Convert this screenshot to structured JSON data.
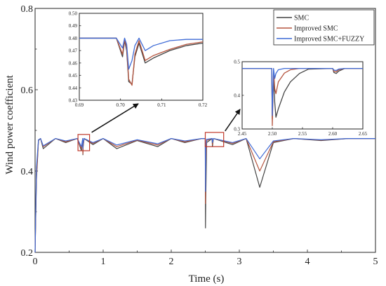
{
  "chart_data": {
    "type": "line",
    "title": "",
    "xlabel": "Time (s)",
    "ylabel": "Wind power coefficient",
    "xlim": [
      0,
      5
    ],
    "ylim": [
      0.2,
      0.8
    ],
    "xticks": [
      0,
      1,
      2,
      3,
      4,
      5
    ],
    "yticks": [
      0.2,
      0.4,
      0.6,
      0.8
    ],
    "xtick_labels": [
      "0",
      "1",
      "2",
      "3",
      "4",
      "5"
    ],
    "ytick_labels": [
      "0.2",
      "0.4",
      "0.6",
      "0.8"
    ],
    "legend_position": "top-right",
    "colors": {
      "SMC": "#444444",
      "Improved SMC": "#b5553f",
      "Improved SMC+FUZZY": "#3f6bd6",
      "highlight_box": "#c0392b",
      "arrow": "#111111"
    },
    "series": [
      {
        "name": "SMC",
        "baseline": 0.48,
        "x": [
          0,
          0.02,
          0.05,
          0.08,
          0.12,
          0.3,
          0.45,
          0.62,
          0.68,
          0.7,
          0.702,
          0.706,
          0.72,
          0.85,
          1.0,
          1.2,
          1.5,
          1.8,
          2.0,
          2.2,
          2.45,
          2.5,
          2.503,
          2.507,
          2.52,
          2.6,
          2.605,
          2.62,
          2.9,
          3.1,
          3.3,
          3.5,
          3.8,
          4.2,
          4.6,
          5.0
        ],
        "values": [
          0.2,
          0.38,
          0.475,
          0.48,
          0.455,
          0.48,
          0.47,
          0.48,
          0.45,
          0.48,
          0.44,
          0.46,
          0.48,
          0.465,
          0.48,
          0.455,
          0.475,
          0.46,
          0.48,
          0.47,
          0.48,
          0.48,
          0.26,
          0.33,
          0.47,
          0.48,
          0.46,
          0.48,
          0.465,
          0.48,
          0.36,
          0.47,
          0.48,
          0.475,
          0.48,
          0.48
        ]
      },
      {
        "name": "Improved SMC",
        "baseline": 0.48,
        "x": [
          0,
          0.02,
          0.05,
          0.08,
          0.12,
          0.3,
          0.45,
          0.62,
          0.68,
          0.7,
          0.702,
          0.706,
          0.72,
          0.85,
          1.0,
          1.2,
          1.5,
          1.8,
          2.0,
          2.2,
          2.45,
          2.5,
          2.503,
          2.507,
          2.52,
          2.6,
          2.605,
          2.62,
          2.9,
          3.1,
          3.3,
          3.5,
          3.8,
          4.2,
          4.6,
          5.0
        ],
        "values": [
          0.2,
          0.39,
          0.476,
          0.48,
          0.46,
          0.48,
          0.472,
          0.48,
          0.455,
          0.48,
          0.442,
          0.462,
          0.48,
          0.468,
          0.48,
          0.46,
          0.476,
          0.464,
          0.48,
          0.472,
          0.48,
          0.48,
          0.32,
          0.42,
          0.475,
          0.48,
          0.465,
          0.48,
          0.468,
          0.48,
          0.4,
          0.472,
          0.48,
          0.476,
          0.48,
          0.48
        ]
      },
      {
        "name": "Improved SMC+FUZZY",
        "baseline": 0.48,
        "x": [
          0,
          0.02,
          0.05,
          0.08,
          0.12,
          0.3,
          0.45,
          0.62,
          0.68,
          0.7,
          0.702,
          0.706,
          0.72,
          0.85,
          1.0,
          1.2,
          1.5,
          1.8,
          2.0,
          2.2,
          2.45,
          2.5,
          2.503,
          2.507,
          2.52,
          2.6,
          2.605,
          2.62,
          2.9,
          3.1,
          3.3,
          3.5,
          3.8,
          4.2,
          4.6,
          5.0
        ],
        "values": [
          0.2,
          0.41,
          0.477,
          0.48,
          0.462,
          0.48,
          0.474,
          0.48,
          0.46,
          0.48,
          0.455,
          0.47,
          0.48,
          0.47,
          0.48,
          0.464,
          0.477,
          0.467,
          0.48,
          0.474,
          0.48,
          0.48,
          0.35,
          0.46,
          0.478,
          0.48,
          0.47,
          0.48,
          0.47,
          0.48,
          0.43,
          0.474,
          0.48,
          0.477,
          0.48,
          0.48
        ]
      }
    ],
    "insets": [
      {
        "name": "inset-left",
        "xlim": [
          0.69,
          0.72
        ],
        "ylim": [
          0.43,
          0.5
        ],
        "xticks": [
          0.69,
          0.7,
          0.71,
          0.72
        ],
        "yticks": [
          0.43,
          0.44,
          0.45,
          0.46,
          0.47,
          0.48,
          0.49,
          0.5
        ],
        "xtick_labels": [
          "0.69",
          "0.70",
          "0.71",
          "0.72"
        ],
        "ytick_labels": [
          "0.43",
          "0.44",
          "0.45",
          "0.46",
          "0.47",
          "0.48",
          "0.49",
          "0.50"
        ],
        "series": [
          {
            "name": "SMC",
            "x": [
              0.69,
              0.699,
              0.7005,
              0.701,
              0.7015,
              0.702,
              0.7028,
              0.7035,
              0.7045,
              0.706,
              0.708,
              0.712,
              0.716,
              0.72
            ],
            "values": [
              0.48,
              0.48,
              0.465,
              0.478,
              0.47,
              0.445,
              0.443,
              0.465,
              0.476,
              0.46,
              0.464,
              0.47,
              0.474,
              0.476
            ]
          },
          {
            "name": "Improved SMC",
            "x": [
              0.69,
              0.699,
              0.7005,
              0.701,
              0.7015,
              0.702,
              0.7028,
              0.7035,
              0.7045,
              0.706,
              0.708,
              0.712,
              0.716,
              0.72
            ],
            "values": [
              0.48,
              0.48,
              0.467,
              0.479,
              0.472,
              0.447,
              0.442,
              0.467,
              0.478,
              0.462,
              0.466,
              0.471,
              0.475,
              0.477
            ]
          },
          {
            "name": "Improved SMC+FUZZY",
            "x": [
              0.69,
              0.699,
              0.7005,
              0.701,
              0.7015,
              0.702,
              0.7028,
              0.7035,
              0.7045,
              0.706,
              0.708,
              0.712,
              0.716,
              0.72
            ],
            "values": [
              0.48,
              0.48,
              0.472,
              0.48,
              0.475,
              0.455,
              0.462,
              0.474,
              0.48,
              0.47,
              0.474,
              0.478,
              0.479,
              0.479
            ]
          }
        ]
      },
      {
        "name": "inset-right",
        "xlim": [
          2.45,
          2.65
        ],
        "ylim": [
          0.3,
          0.5
        ],
        "xticks": [
          2.45,
          2.5,
          2.55,
          2.6,
          2.65
        ],
        "yticks": [
          0.3,
          0.4,
          0.5
        ],
        "xtick_labels": [
          "2.45",
          "2.50",
          "2.55",
          "2.60",
          "2.65"
        ],
        "ytick_labels": [
          "0.3",
          "0.4",
          "0.5"
        ],
        "series": [
          {
            "name": "SMC",
            "x": [
              2.45,
              2.499,
              2.5,
              2.502,
              2.504,
              2.506,
              2.51,
              2.52,
              2.53,
              2.545,
              2.56,
              2.6,
              2.602,
              2.606,
              2.61,
              2.62,
              2.65
            ],
            "values": [
              0.48,
              0.48,
              0.33,
              0.47,
              0.38,
              0.335,
              0.36,
              0.41,
              0.44,
              0.465,
              0.478,
              0.48,
              0.468,
              0.465,
              0.472,
              0.48,
              0.48
            ]
          },
          {
            "name": "Improved SMC",
            "x": [
              2.45,
              2.499,
              2.5,
              2.502,
              2.504,
              2.506,
              2.51,
              2.52,
              2.53,
              2.545,
              2.56,
              2.6,
              2.602,
              2.606,
              2.61,
              2.62,
              2.65
            ],
            "values": [
              0.48,
              0.48,
              0.31,
              0.475,
              0.42,
              0.405,
              0.44,
              0.466,
              0.476,
              0.48,
              0.48,
              0.48,
              0.472,
              0.47,
              0.476,
              0.48,
              0.48
            ]
          },
          {
            "name": "Improved SMC+FUZZY",
            "x": [
              2.45,
              2.499,
              2.5,
              2.502,
              2.504,
              2.506,
              2.51,
              2.52,
              2.53,
              2.545,
              2.56,
              2.6,
              2.602,
              2.606,
              2.61,
              2.62,
              2.65
            ],
            "values": [
              0.48,
              0.48,
              0.34,
              0.48,
              0.45,
              0.465,
              0.476,
              0.48,
              0.48,
              0.48,
              0.48,
              0.48,
              0.475,
              0.474,
              0.478,
              0.48,
              0.48
            ]
          }
        ]
      }
    ],
    "highlights": [
      {
        "name": "highlight-box-left",
        "x_range": [
          0.63,
          0.8
        ],
        "y_range": [
          0.45,
          0.49
        ]
      },
      {
        "name": "highlight-box-right",
        "x_range": [
          2.5,
          2.77
        ],
        "y_range": [
          0.46,
          0.495
        ]
      }
    ]
  }
}
